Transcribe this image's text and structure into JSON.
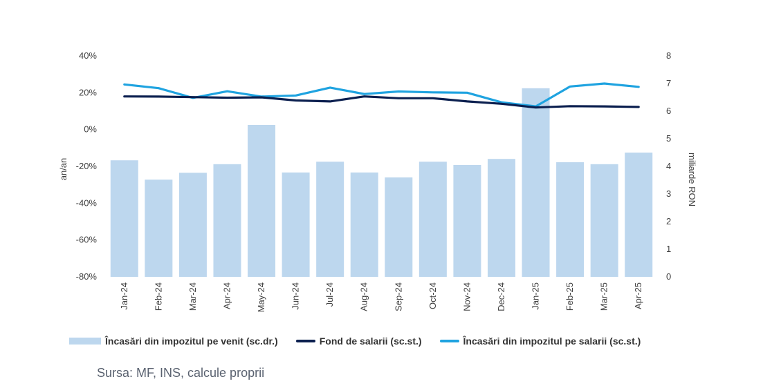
{
  "chart_data": {
    "type": "bar+line",
    "categories": [
      "Jan-24",
      "Feb-24",
      "Mar-24",
      "Apr-24",
      "May-24",
      "Jun-24",
      "Jul-24",
      "Aug-24",
      "Sep-24",
      "Oct-24",
      "Nov-24",
      "Dec-24",
      "Jan-25",
      "Feb-25",
      "Mar-25",
      "Apr-25"
    ],
    "left_axis": {
      "title": "an/an",
      "ticks": [
        "40%",
        "20%",
        "0%",
        "-20%",
        "-40%",
        "-60%",
        "-80%"
      ],
      "range": [
        -80,
        40
      ]
    },
    "right_axis": {
      "title": "miliarde RON",
      "ticks": [
        "8",
        "7",
        "6",
        "5",
        "4",
        "3",
        "2",
        "1",
        "0"
      ],
      "range": [
        0,
        8
      ]
    },
    "series": [
      {
        "name": "Încasări din impozitul pe venit (sc.dr.)",
        "type": "bar",
        "axis": "right",
        "color": "#bdd7ee",
        "values": [
          4.22,
          3.52,
          3.77,
          4.08,
          5.5,
          3.78,
          4.17,
          3.78,
          3.6,
          4.17,
          4.05,
          4.27,
          6.83,
          4.15,
          4.08,
          4.5
        ]
      },
      {
        "name": "Fond de salarii (sc.st.)",
        "type": "line",
        "axis": "left",
        "color": "#0b1f4f",
        "values": [
          18,
          17.9,
          17.6,
          17.3,
          17.5,
          15.8,
          15.3,
          18,
          17,
          17,
          15.3,
          14,
          12,
          12.7,
          12.6,
          12.3
        ]
      },
      {
        "name": "Încasări din impozitul pe salarii (sc.st.)",
        "type": "line",
        "axis": "left",
        "color": "#1fa3e0",
        "values": [
          24.5,
          22.5,
          17.2,
          20.8,
          17.9,
          18.5,
          22.8,
          19.3,
          20.7,
          20.2,
          20,
          14.8,
          12.6,
          23.4,
          25,
          23.2
        ]
      }
    ]
  },
  "source": "Sursa: MF, INS, calcule proprii"
}
